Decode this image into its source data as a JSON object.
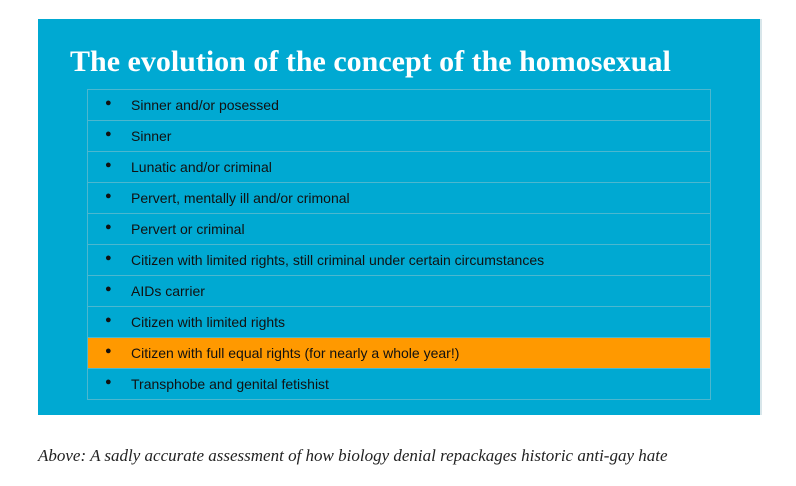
{
  "slide": {
    "title": "The evolution of the concept of the homosexual",
    "items": [
      "Sinner and/or posessed",
      "Sinner",
      "Lunatic and/or criminal",
      "Pervert, mentally ill and/or crimonal",
      "Pervert or criminal",
      "Citizen with limited rights, still criminal under certain circumstances",
      "AIDs carrier",
      "Citizen with limited rights",
      "Citizen with full equal rights (for nearly a whole year!)",
      "Transphobe and genital fetishist"
    ],
    "bullet": "●",
    "highlight_index": 8
  },
  "caption": "Above: A sadly accurate assessment of how biology denial repackages historic anti-gay hate"
}
